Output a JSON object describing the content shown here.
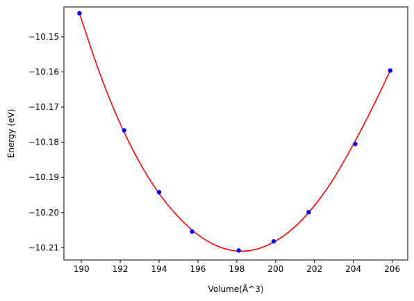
{
  "chart_data": {
    "type": "scatter",
    "xlabel": "Volume(Å^3)",
    "ylabel": "Energy (eV)",
    "xlim": [
      189.1,
      206.8
    ],
    "ylim": [
      -10.2135,
      -10.1415
    ],
    "x_ticks": [
      190,
      192,
      194,
      196,
      198,
      200,
      202,
      204,
      206
    ],
    "x_tick_labels": [
      "190",
      "192",
      "194",
      "196",
      "198",
      "200",
      "202",
      "204",
      "206"
    ],
    "y_ticks": [
      -10.15,
      -10.16,
      -10.17,
      -10.18,
      -10.19,
      -10.2,
      -10.21
    ],
    "y_tick_labels": [
      "−10.15",
      "−10.16",
      "−10.17",
      "−10.18",
      "−10.19",
      "−10.20",
      "−10.21"
    ],
    "grid": false,
    "series": [
      {
        "kind": "points",
        "color": "#0000ff",
        "x": [
          189.9,
          192.2,
          194.0,
          195.7,
          198.1,
          199.9,
          201.7,
          204.1,
          205.9
        ],
        "y": [
          -10.1433,
          -10.1766,
          -10.1942,
          -10.2054,
          -10.2108,
          -10.2082,
          -10.1999,
          -10.1805,
          -10.1596
        ]
      },
      {
        "kind": "fit-curve",
        "color": "#ff0000",
        "x": [
          189.9,
          190.9,
          191.9,
          192.9,
          193.9,
          194.9,
          195.9,
          196.9,
          197.9,
          198.9,
          199.9,
          200.9,
          201.9,
          202.9,
          203.9,
          204.9,
          205.9
        ],
        "y": [
          -10.1433,
          -10.1597,
          -10.1735,
          -10.1848,
          -10.1938,
          -10.2007,
          -10.2059,
          -10.2093,
          -10.2109,
          -10.2106,
          -10.2084,
          -10.2045,
          -10.1987,
          -10.1911,
          -10.1816,
          -10.1711,
          -10.1596
        ]
      }
    ]
  }
}
